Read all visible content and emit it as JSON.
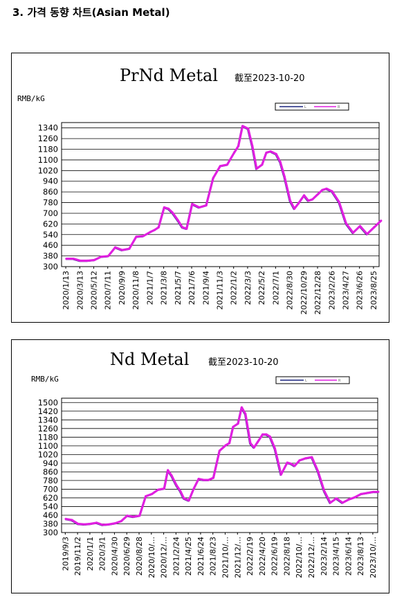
{
  "heading": "3. 가격 동향 차트(Asian Metal)",
  "colors": {
    "line_under": "#1a237e",
    "line_over": "#e020e0",
    "grid": "#000000"
  },
  "chart_data": [
    {
      "type": "line",
      "title": "PrNd Metal",
      "subtitle": "截至2023-10-20",
      "ylabel": "RMB/kG",
      "ylim": [
        300,
        1380
      ],
      "yticks": [
        300,
        380,
        460,
        540,
        620,
        700,
        780,
        860,
        940,
        1020,
        1100,
        1180,
        1260,
        1340
      ],
      "grid": true,
      "legend": {
        "position": "top-right",
        "entries": [
          "L",
          "R"
        ]
      },
      "xticks": [
        "2020/1/13",
        "2020/3/13",
        "2020/5/12",
        "2020/7/11",
        "2020/9/9",
        "2020/11/8",
        "2021/1/7",
        "2021/3/8",
        "2021/5/7",
        "2021/7/6",
        "2021/9/4",
        "2021/11/3",
        "2022/1/2",
        "2022/3/3",
        "2022/5/2",
        "2022/7/1",
        "2022/8/30",
        "2022/10/29",
        "2022/12/28",
        "2023/2/26",
        "2023/4/27",
        "2023/6/26",
        "2023/8/25"
      ],
      "x": [
        0,
        0.5,
        1,
        1.5,
        2,
        2.5,
        3,
        3.5,
        4,
        4.5,
        5,
        5.5,
        6,
        6.3,
        6.6,
        7,
        7.3,
        7.6,
        8,
        8.3,
        8.6,
        9,
        9.5,
        10,
        10.5,
        11,
        11.5,
        12,
        12.3,
        12.6,
        13,
        13.3,
        13.6,
        14,
        14.3,
        14.6,
        15,
        15.3,
        15.6,
        16,
        16.3,
        16.6,
        17,
        17.3,
        17.6,
        18,
        18.3,
        18.6,
        19,
        19.5,
        20,
        20.5,
        21,
        21.5,
        22,
        22.5
      ],
      "values": [
        355,
        355,
        340,
        340,
        345,
        370,
        375,
        440,
        420,
        430,
        520,
        525,
        555,
        570,
        590,
        740,
        730,
        700,
        640,
        590,
        580,
        765,
        740,
        755,
        960,
        1050,
        1060,
        1150,
        1200,
        1350,
        1330,
        1200,
        1030,
        1060,
        1150,
        1160,
        1140,
        1080,
        970,
        790,
        730,
        770,
        830,
        790,
        800,
        840,
        870,
        880,
        860,
        780,
        620,
        550,
        600,
        540,
        590,
        640
      ]
    },
    {
      "type": "line",
      "title": "Nd Metal",
      "subtitle": "截至2023-10-20",
      "ylabel": "RMB/kG",
      "ylim": [
        300,
        1540
      ],
      "yticks": [
        300,
        380,
        460,
        540,
        620,
        700,
        780,
        860,
        940,
        1020,
        1100,
        1180,
        1260,
        1340,
        1420,
        1500
      ],
      "grid": true,
      "legend": {
        "position": "top-right",
        "entries": [
          "L",
          "R"
        ]
      },
      "xticks": [
        "2019/9/3",
        "2019/11/2",
        "2020/1/1",
        "2020/3/1",
        "2020/4/30",
        "2020/6/29",
        "2020/8/28",
        "2020/10/...",
        "2020/12/...",
        "2021/2/24",
        "2021/4/25",
        "2021/6/24",
        "2021/8/23",
        "2021/10/...",
        "2021/12/...",
        "2022/2/19",
        "2022/4/20",
        "2022/6/19",
        "2022/8/18",
        "2022/10/...",
        "2022/12/...",
        "2023/2/14",
        "2023/4/15",
        "2023/6/14",
        "2023/8/13",
        "2023/10/..."
      ],
      "x": [
        0,
        0.5,
        1,
        1.5,
        2,
        2.5,
        3,
        3.5,
        4,
        4.5,
        5,
        5.5,
        6,
        6.5,
        7,
        7.5,
        8,
        8.3,
        8.6,
        9,
        9.3,
        9.6,
        10,
        10.4,
        10.8,
        11.2,
        11.6,
        12,
        12.5,
        13,
        13.3,
        13.6,
        14,
        14.3,
        14.6,
        15,
        15.3,
        15.6,
        16,
        16.3,
        16.6,
        17,
        17.5,
        18,
        18.3,
        18.6,
        19,
        19.5,
        20,
        20.5,
        21,
        21.5,
        22,
        22.5,
        23,
        23.5,
        24,
        24.5,
        25,
        25.4
      ],
      "values": [
        420,
        410,
        375,
        370,
        375,
        385,
        365,
        370,
        380,
        400,
        450,
        440,
        450,
        630,
        650,
        690,
        700,
        870,
        820,
        730,
        680,
        610,
        590,
        700,
        790,
        780,
        780,
        800,
        1050,
        1100,
        1120,
        1270,
        1300,
        1450,
        1390,
        1120,
        1080,
        1130,
        1200,
        1200,
        1180,
        1070,
        830,
        940,
        930,
        910,
        960,
        980,
        990,
        860,
        680,
        570,
        610,
        570,
        600,
        620,
        650,
        660,
        670,
        670
      ]
    }
  ]
}
